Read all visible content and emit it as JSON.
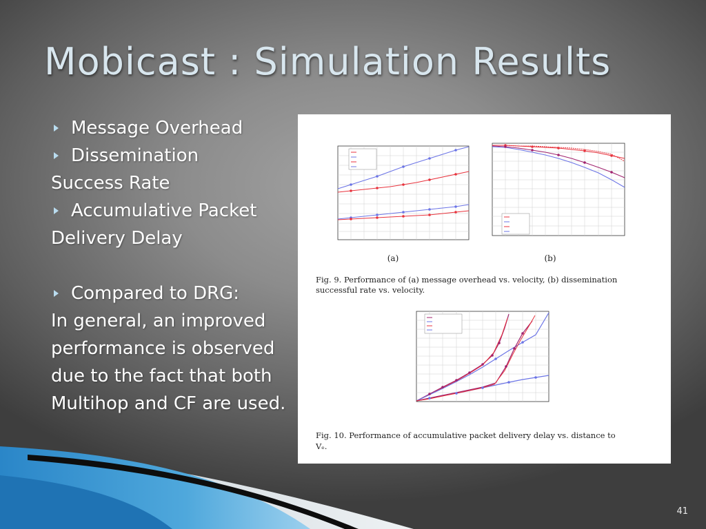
{
  "slide": {
    "title": "Mobicast : Simulation Results",
    "number": "41"
  },
  "content": {
    "bullet1": "Message Overhead",
    "bullet2": "Dissemination",
    "line_success_rate": "Success Rate",
    "bullet3": "Accumulative Packet",
    "line_delivery_delay": "Delivery Delay",
    "bullet4": "Compared to DRG:",
    "para1": "In general, an improved",
    "para2": "performance is observed",
    "para3": "due to the fact that both",
    "para4": "Multihop and CF are used."
  },
  "figure": {
    "label_a": "(a)",
    "label_b": "(b)",
    "fig9_line1": "Fig. 9.   Performance of (a) message overhead vs. velocity, (b) dissemination",
    "fig9_line2": "successful rate vs. velocity.",
    "fig10_line1": "Fig. 10.   Performance of accumulative packet delivery delay vs. distance to",
    "fig10_line2": "Vₑ."
  },
  "colors": {
    "title": "#d8e6ee",
    "bullet_arrow": "#b9dcef",
    "series_red": "#e8323c",
    "series_blue": "#6b74e6",
    "series_purple": "#a0226e"
  }
}
